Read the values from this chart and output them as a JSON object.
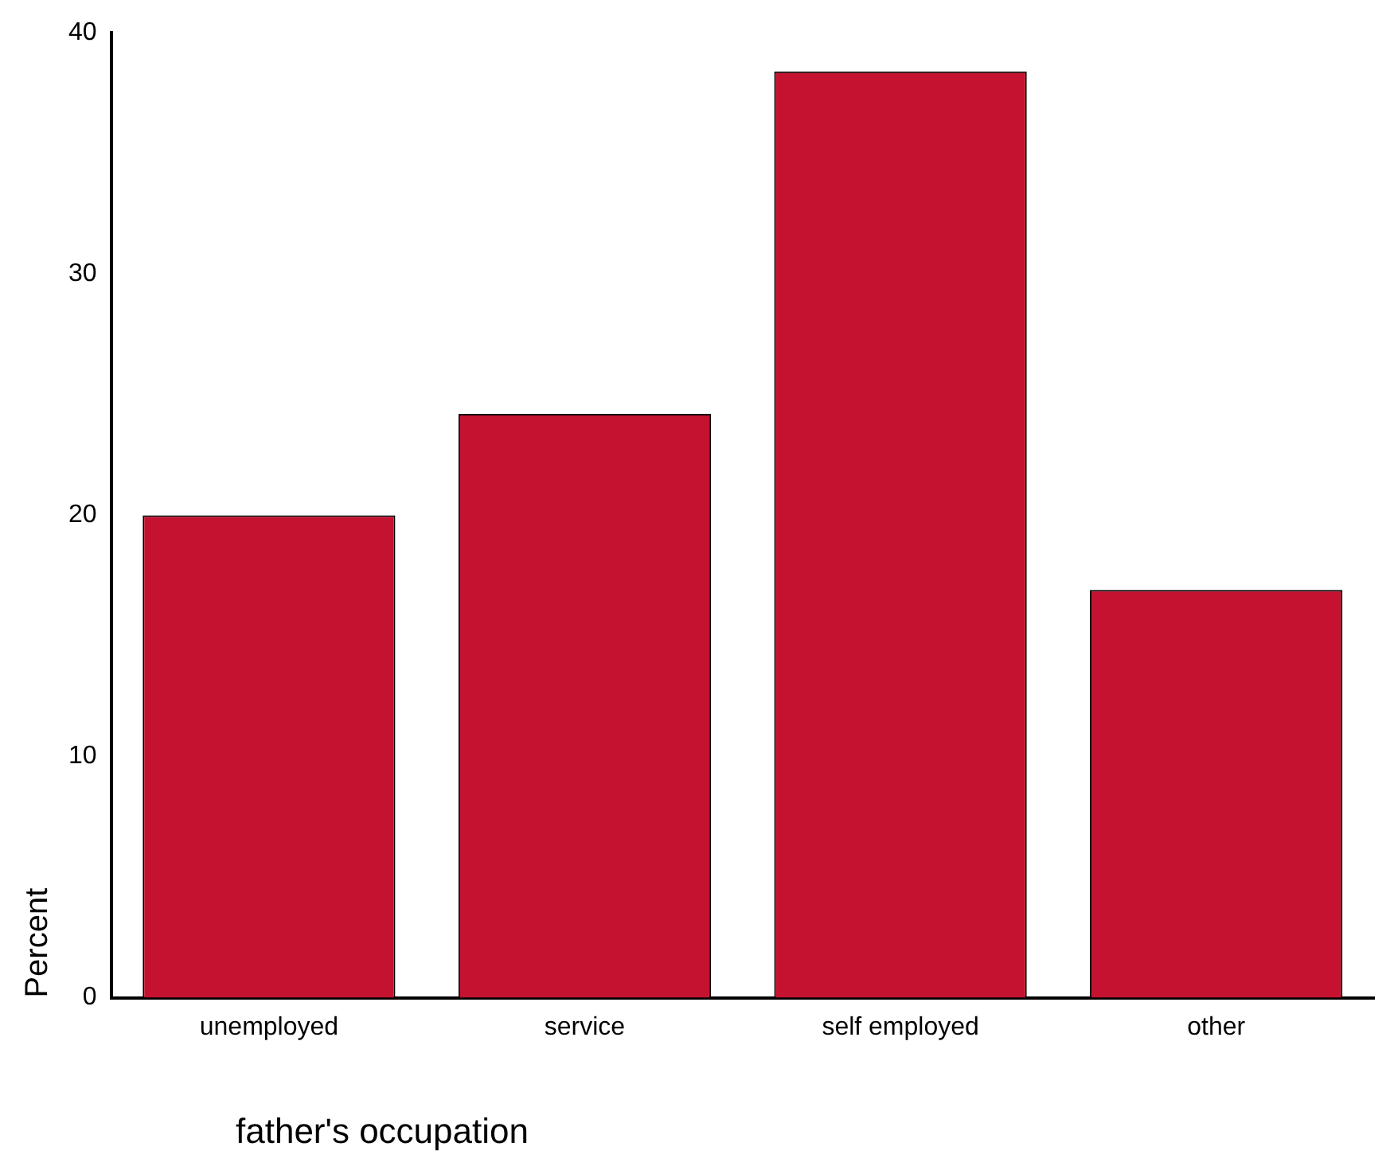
{
  "chart_data": {
    "type": "bar",
    "xlabel": "father's occupation",
    "ylabel": "Percent",
    "categories": [
      "unemployed",
      "service",
      "self employed",
      "other"
    ],
    "values": [
      20.0,
      24.2,
      38.4,
      16.9
    ],
    "color": "#c41230",
    "ylim": [
      0,
      40
    ],
    "yticks": [
      0,
      10,
      20,
      30,
      40
    ],
    "grid": false,
    "legend": false
  }
}
